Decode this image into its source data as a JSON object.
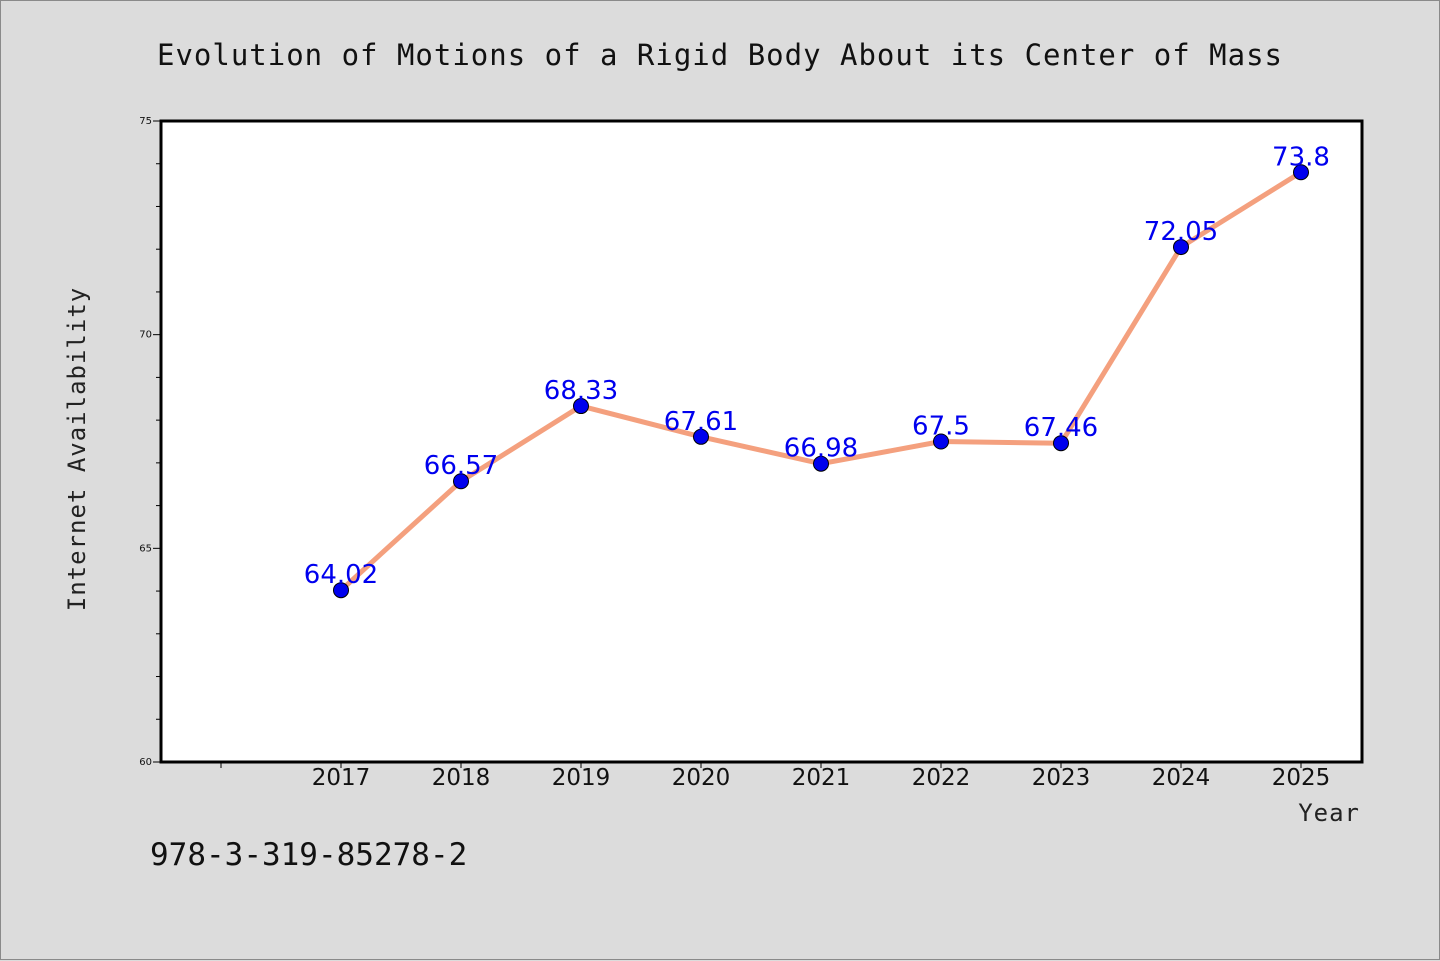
{
  "chart_data": {
    "type": "line",
    "title": "Evolution of Motions of a Rigid Body About its Center of Mass",
    "xlabel": "Year",
    "ylabel": "Internet Availability",
    "categories": [
      "2017",
      "2018",
      "2019",
      "2020",
      "2021",
      "2022",
      "2023",
      "2024",
      "2025"
    ],
    "series": [
      {
        "values": [
          64.02,
          66.57,
          68.33,
          67.61,
          66.98,
          67.5,
          67.46,
          72.05,
          73.8
        ],
        "labels": [
          "64.02",
          "66.57",
          "68.33",
          "67.61",
          "66.98",
          "67.5",
          "67.46",
          "72.05",
          "73.8"
        ]
      }
    ],
    "ylim": [
      60,
      75
    ],
    "yticks": [
      "60",
      "65",
      "70",
      "75"
    ],
    "grid": false,
    "legend": "none",
    "line_color": "#f4a07e",
    "marker_color": "#0000ee",
    "label_color": "#0000ee"
  },
  "footer": {
    "isbn": "978-3-319-85278-2"
  }
}
